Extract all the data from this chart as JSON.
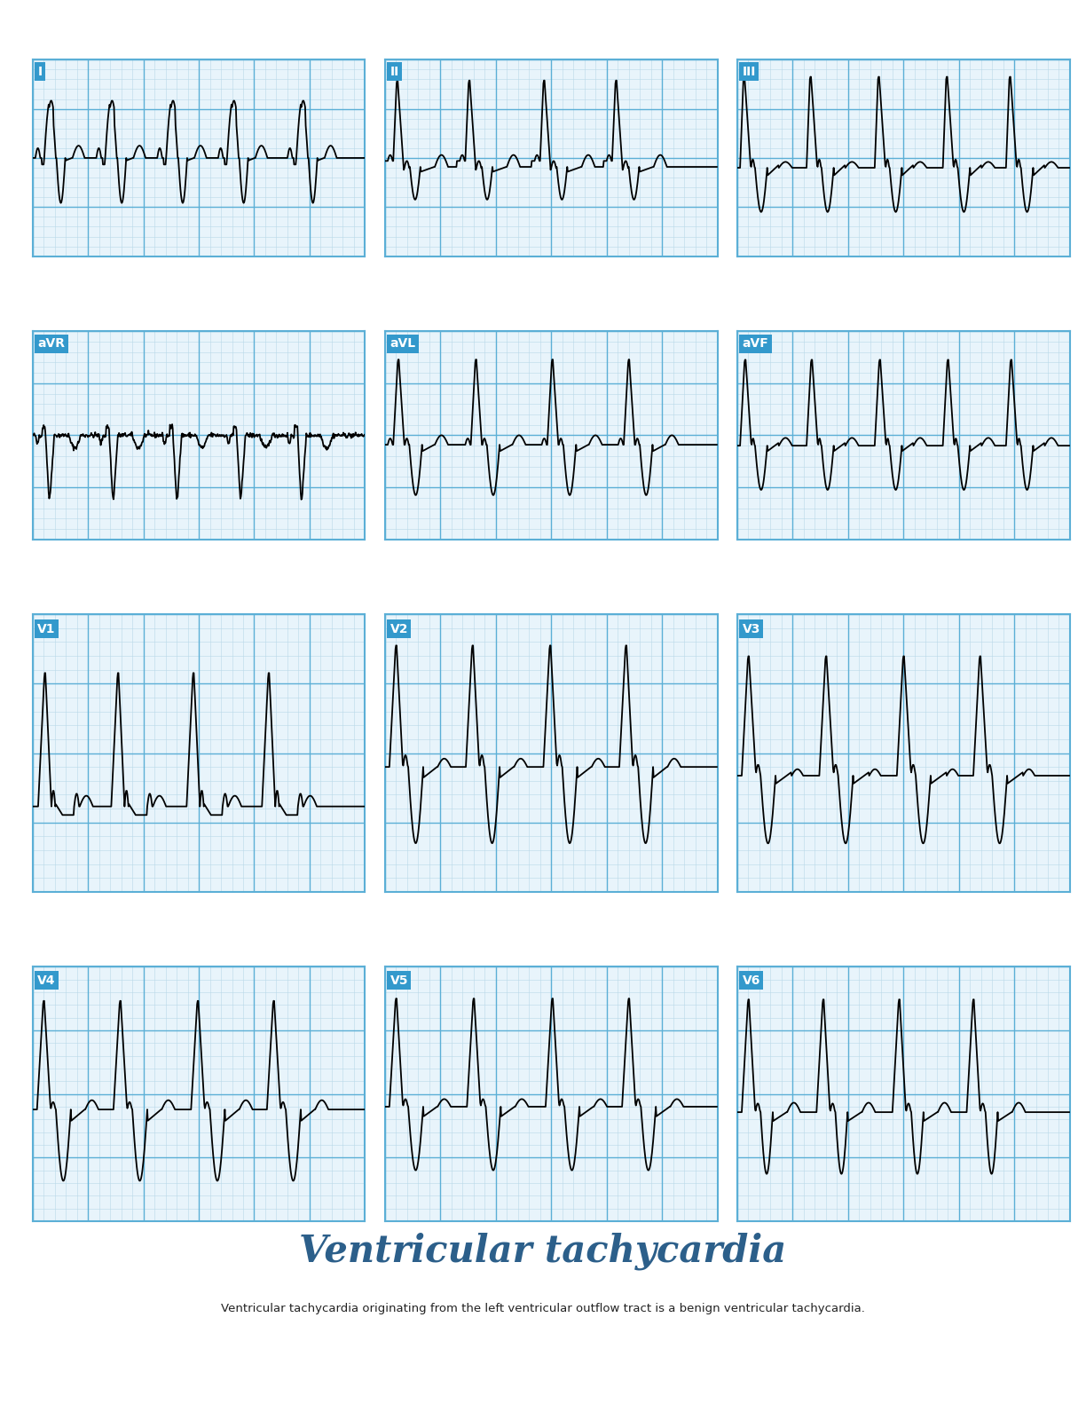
{
  "title": "Ventricular tachycardia",
  "subtitle": "Ventricular tachycardia originating from the left ventricular outflow tract is a benign ventricular tachycardia.",
  "title_color": "#2c5f8a",
  "bg_color": "#ffffff",
  "grid_minor_color": "#b8d8e8",
  "grid_major_color": "#5bafd6",
  "label_bg_color": "#3399cc",
  "label_text_color": "#ffffff",
  "ecg_color": "#000000",
  "labels": [
    "I",
    "II",
    "III",
    "aVR",
    "aVL",
    "aVF",
    "V1",
    "V2",
    "V3",
    "V4",
    "V5",
    "V6"
  ],
  "footer_bg": "#2d3e50",
  "footer_text": "#ffffff",
  "panel_bg": "#e8f4fb"
}
